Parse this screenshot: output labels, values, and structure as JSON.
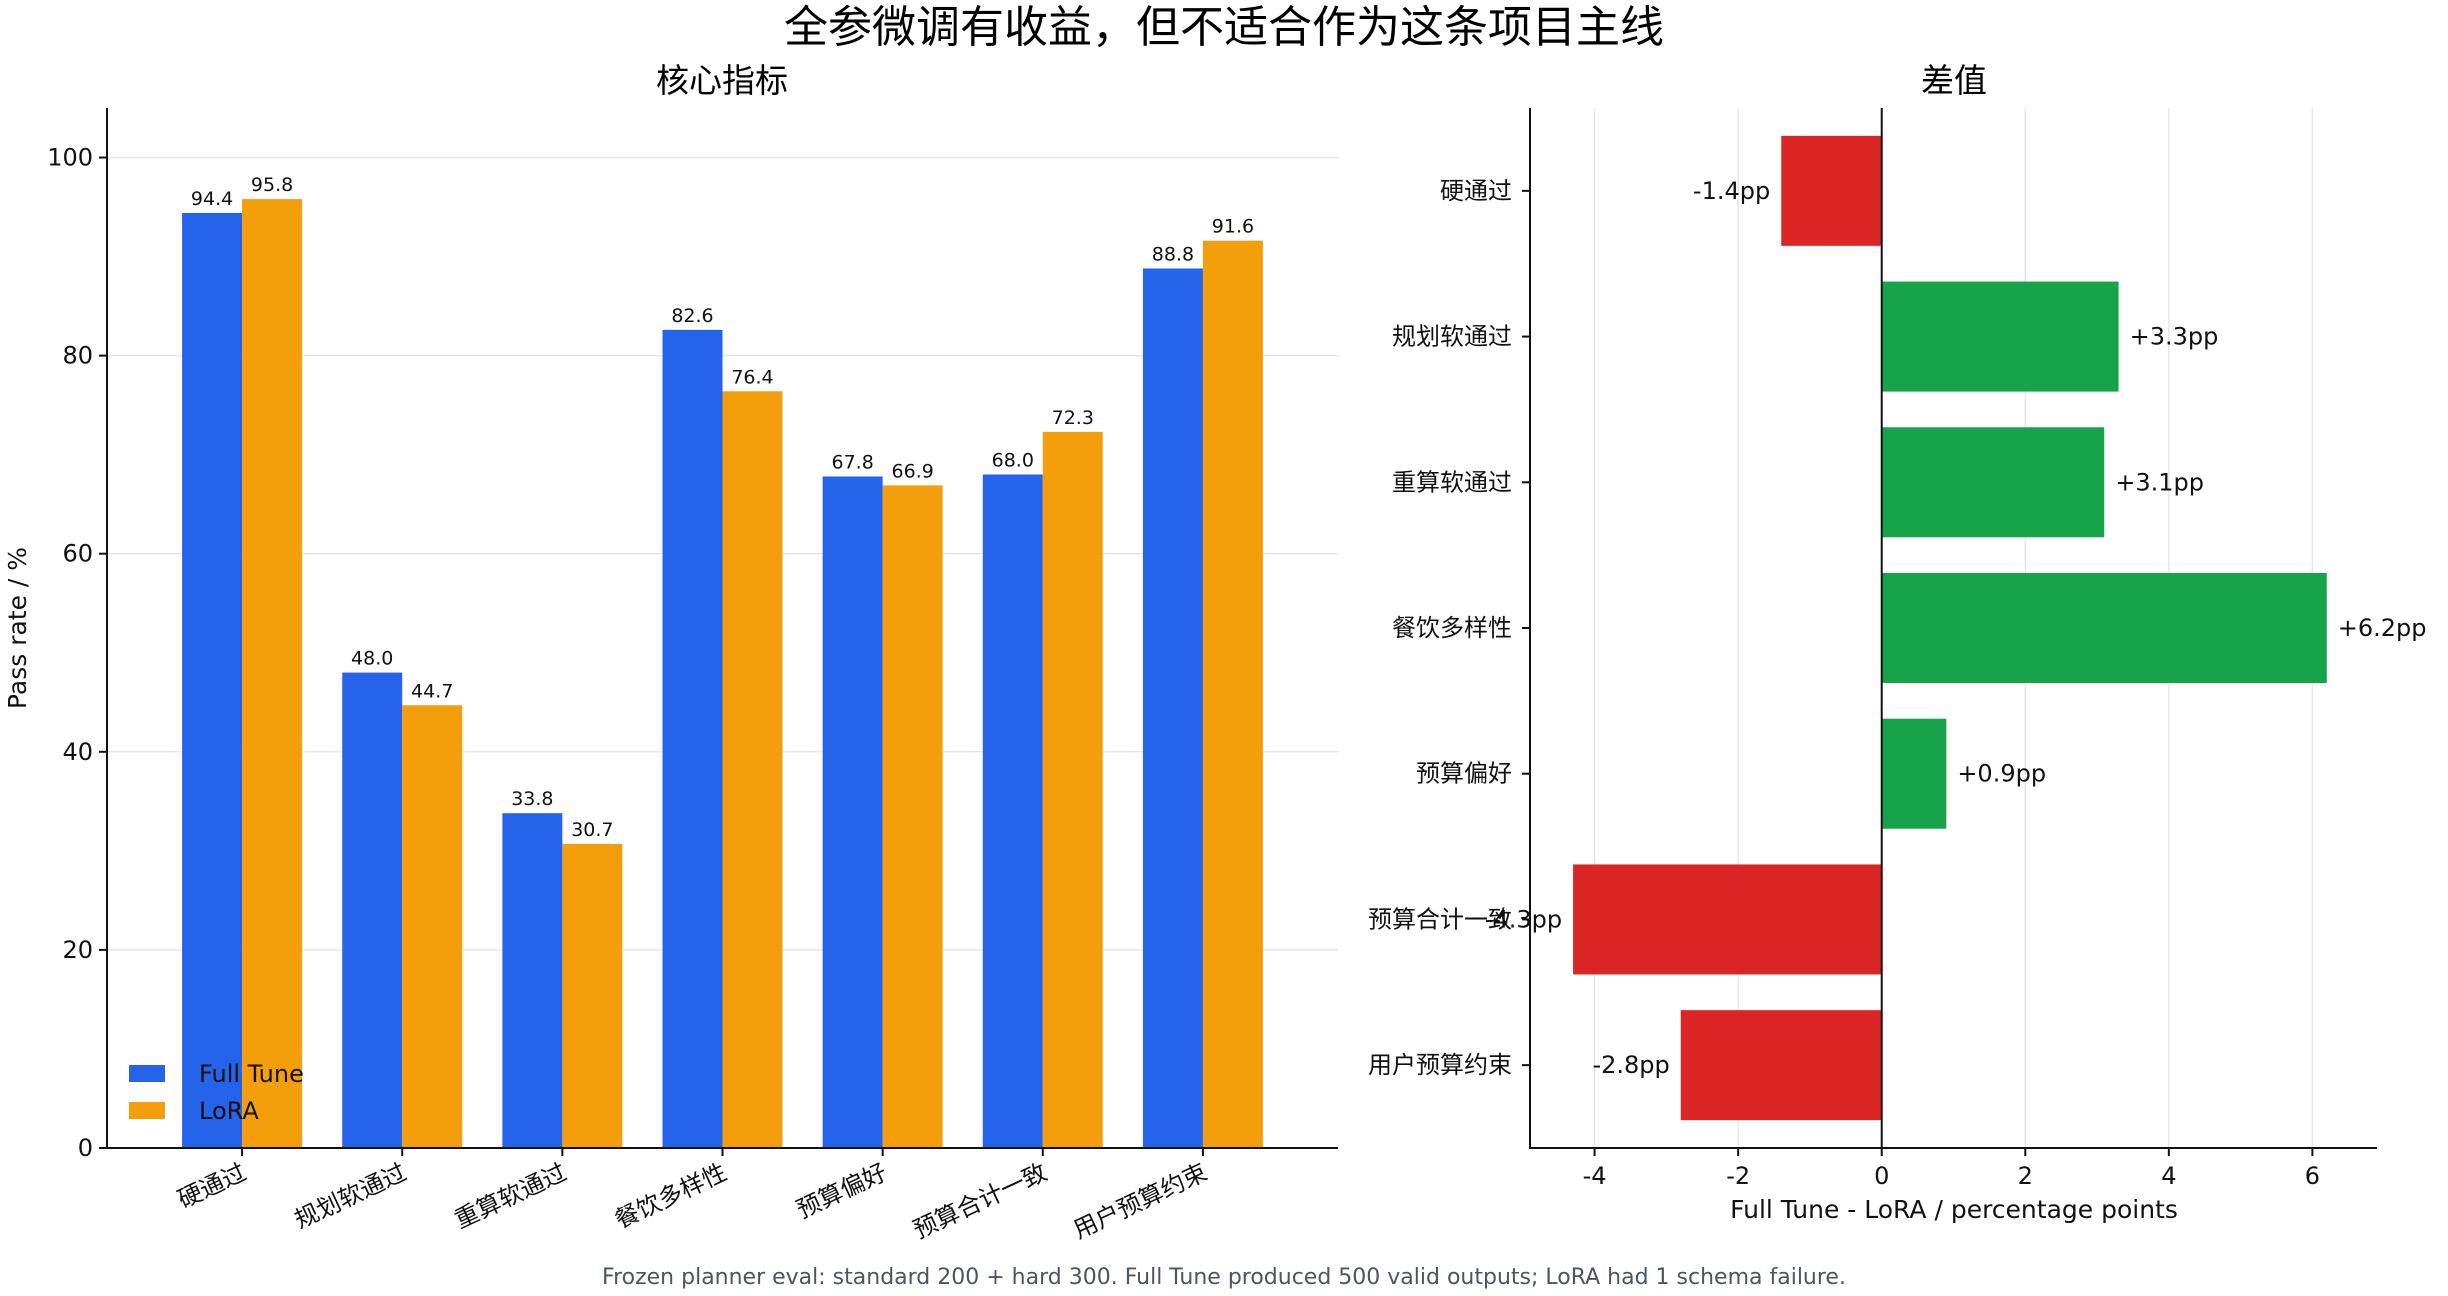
{
  "figure": {
    "suptitle": "全参微调有收益，但不适合作为这条项目主线",
    "footnote": "Frozen planner eval: standard 200 + hard 300. Full Tune produced 500 valid outputs; LoRA had 1 schema failure."
  },
  "chart_data": [
    {
      "type": "bar",
      "title": "核心指标",
      "xlabel": "",
      "ylabel": "Pass rate / %",
      "ylim": [
        0,
        105
      ],
      "yticks": [
        0,
        20,
        40,
        60,
        80,
        100
      ],
      "grid": "y",
      "legend": "bottom-left",
      "categories": [
        "硬通过",
        "规划软通过",
        "重算软通过",
        "餐饮多样性",
        "预算偏好",
        "预算合计一致",
        "用户预算约束"
      ],
      "series": [
        {
          "name": "Full Tune",
          "color": "#2563eb",
          "values": [
            94.4,
            48.0,
            33.8,
            82.6,
            67.8,
            68.0,
            88.8
          ]
        },
        {
          "name": "LoRA",
          "color": "#f59e0b",
          "values": [
            95.8,
            44.7,
            30.7,
            76.4,
            66.9,
            72.3,
            91.6
          ]
        }
      ]
    },
    {
      "type": "bar",
      "orientation": "horizontal",
      "title": "差值",
      "xlabel": "Full Tune - LoRA / percentage points",
      "ylabel": "",
      "xlim": [
        -4.9,
        6.9
      ],
      "xticks": [
        -4,
        -2,
        0,
        2,
        4,
        6
      ],
      "grid": "x",
      "positive_color": "#16a34a",
      "negative_color": "#dc2626",
      "categories": [
        "硬通过",
        "规划软通过",
        "重算软通过",
        "餐饮多样性",
        "预算偏好",
        "预算合计一致",
        "用户预算约束"
      ],
      "values": [
        -1.4,
        3.3,
        3.1,
        6.2,
        0.9,
        -4.3,
        -2.8
      ],
      "labels": [
        "-1.4pp",
        "+3.3pp",
        "+3.1pp",
        "+6.2pp",
        "+0.9pp",
        "-4.3pp",
        "-2.8pp"
      ]
    }
  ]
}
